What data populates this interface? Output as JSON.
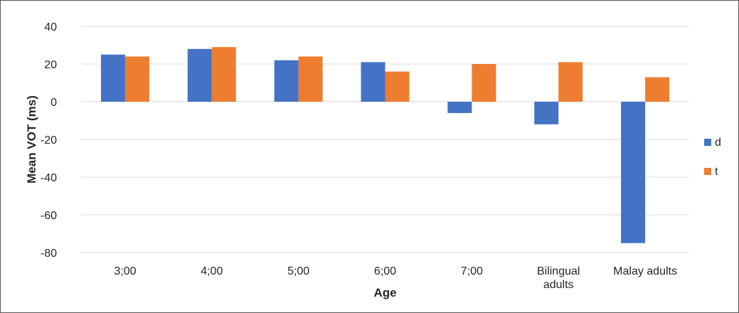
{
  "chart_data": {
    "type": "bar",
    "title": "",
    "xlabel": "Age",
    "ylabel": "Mean VOT (ms)",
    "categories": [
      [
        "3;00"
      ],
      [
        "4;00"
      ],
      [
        "5;00"
      ],
      [
        "6;00"
      ],
      [
        "7;00"
      ],
      [
        "Bilingual",
        "adults"
      ],
      [
        "Malay adults"
      ]
    ],
    "series": [
      {
        "name": "d",
        "color": "#4472c4",
        "values": [
          25,
          28,
          22,
          21,
          -6,
          -12,
          -75
        ]
      },
      {
        "name": "t",
        "color": "#ed7d31",
        "values": [
          24,
          29,
          24,
          16,
          20,
          21,
          13
        ]
      }
    ],
    "ylim": [
      -80,
      40
    ],
    "yticks": [
      40,
      20,
      0,
      -20,
      -40,
      -60,
      -80
    ],
    "grid": true,
    "legend_position": "right"
  }
}
